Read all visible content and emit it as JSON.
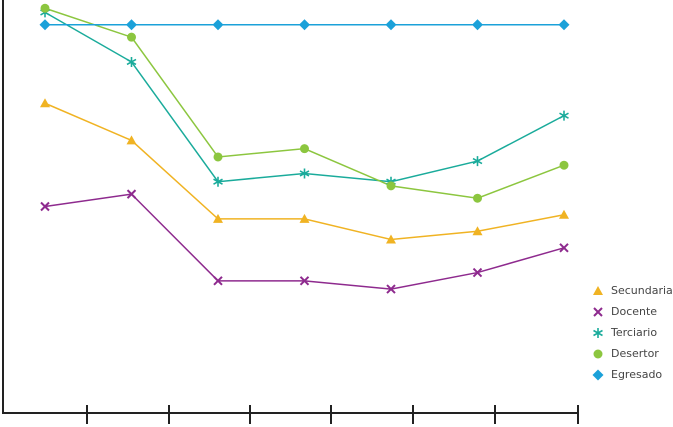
{
  "chart_data": {
    "type": "line",
    "categories": [
      null,
      null,
      null,
      null,
      null,
      null,
      null
    ],
    "ylim": [
      0,
      100
    ],
    "series": [
      {
        "name": "Secundaria",
        "color": "#f0b323",
        "marker": "triangle",
        "values": [
          75,
          66,
          47,
          47,
          42,
          44,
          48
        ]
      },
      {
        "name": "Docente",
        "color": "#8e2a8e",
        "marker": "x",
        "values": [
          50,
          53,
          32,
          32,
          30,
          34,
          40
        ]
      },
      {
        "name": "Terciario",
        "color": "#1aab9b",
        "marker": "asterisk",
        "values": [
          97,
          85,
          56,
          58,
          56,
          61,
          72
        ]
      },
      {
        "name": "Desertor",
        "color": "#8cc63f",
        "marker": "circle",
        "values": [
          98,
          91,
          62,
          64,
          55,
          52,
          60
        ]
      },
      {
        "name": "Egresado",
        "color": "#1ba1d9",
        "marker": "diamond",
        "values": [
          94,
          94,
          94,
          94,
          94,
          94,
          94
        ]
      }
    ]
  }
}
